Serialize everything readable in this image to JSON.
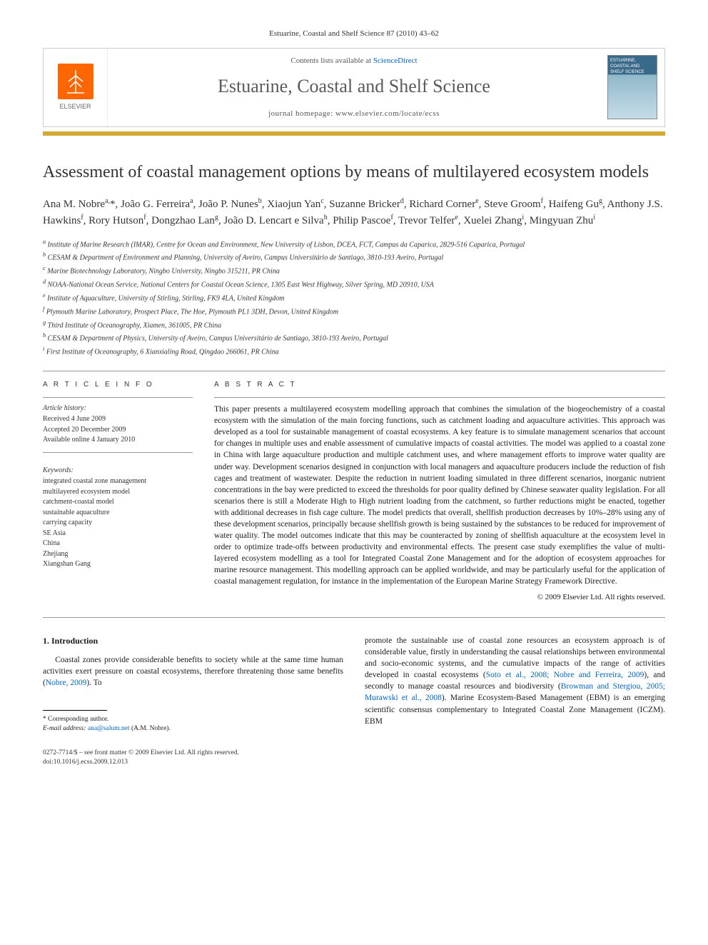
{
  "running_head": "Estuarine, Coastal and Shelf Science 87 (2010) 43–62",
  "header": {
    "contents_prefix": "Contents lists available at ",
    "contents_link": "ScienceDirect",
    "journal_name": "Estuarine, Coastal and Shelf Science",
    "homepage_prefix": "journal homepage: ",
    "homepage_url": "www.elsevier.com/locate/ecss",
    "elsevier_brand": "ELSEVIER",
    "cover_text": "ESTUARINE, COASTAL AND SHELF SCIENCE"
  },
  "title": "Assessment of coastal management options by means of multilayered ecosystem models",
  "authors_html": "Ana M. Nobre<sup>a,</sup>*, João G. Ferreira<sup>a</sup>, João P. Nunes<sup>b</sup>, Xiaojun Yan<sup>c</sup>, Suzanne Bricker<sup>d</sup>, Richard Corner<sup>e</sup>, Steve Groom<sup>f</sup>, Haifeng Gu<sup>g</sup>, Anthony J.S. Hawkins<sup>f</sup>, Rory Hutson<sup>f</sup>, Dongzhao Lan<sup>g</sup>, João D. Lencart e Silva<sup>h</sup>, Philip Pascoe<sup>f</sup>, Trevor Telfer<sup>e</sup>, Xuelei Zhang<sup>i</sup>, Mingyuan Zhu<sup>i</sup>",
  "affiliations": [
    "a Institute of Marine Research (IMAR), Centre for Ocean and Environment, New University of Lisbon, DCEA, FCT, Campus da Caparica, 2829-516 Caparica, Portugal",
    "b CESAM & Department of Environment and Planning, University of Aveiro, Campus Universitário de Santiago, 3810-193 Aveiro, Portugal",
    "c Marine Biotechnology Laboratory, Ningbo University, Ningbo 315211, PR China",
    "d NOAA-National Ocean Service, National Centers for Coastal Ocean Science, 1305 East West Highway, Silver Spring, MD 20910, USA",
    "e Institute of Aquaculture, University of Stirling, Stirling, FK9 4LA, United Kingdom",
    "f Plymouth Marine Laboratory, Prospect Place, The Hoe, Plymouth PL1 3DH, Devon, United Kingdom",
    "g Third Institute of Oceanography, Xiamen, 361005, PR China",
    "h CESAM & Department of Physics, University of Aveiro, Campus Universitário de Santiago, 3810-193 Aveiro, Portugal",
    "i First Institute of Oceanography, 6 Xianxialing Road, Qingdao 266061, PR China"
  ],
  "article_info": {
    "label": "A R T I C L E   I N F O",
    "history_head": "Article history:",
    "history": [
      "Received 4 June 2009",
      "Accepted 20 December 2009",
      "Available online 4 January 2010"
    ],
    "keywords_head": "Keywords:",
    "keywords": [
      "integrated coastal zone management",
      "multilayered ecosystem model",
      "catchment-coastal model",
      "sustainable aquaculture",
      "carrying capacity",
      "SE Asia",
      "China",
      "Zhejiang",
      "Xiangshan Gang"
    ]
  },
  "abstract": {
    "label": "A B S T R A C T",
    "text": "This paper presents a multilayered ecosystem modelling approach that combines the simulation of the biogeochemistry of a coastal ecosystem with the simulation of the main forcing functions, such as catchment loading and aquaculture activities. This approach was developed as a tool for sustainable management of coastal ecosystems. A key feature is to simulate management scenarios that account for changes in multiple uses and enable assessment of cumulative impacts of coastal activities. The model was applied to a coastal zone in China with large aquaculture production and multiple catchment uses, and where management efforts to improve water quality are under way. Development scenarios designed in conjunction with local managers and aquaculture producers include the reduction of fish cages and treatment of wastewater. Despite the reduction in nutrient loading simulated in three different scenarios, inorganic nutrient concentrations in the bay were predicted to exceed the thresholds for poor quality defined by Chinese seawater quality legislation. For all scenarios there is still a Moderate High to High nutrient loading from the catchment, so further reductions might be enacted, together with additional decreases in fish cage culture. The model predicts that overall, shellfish production decreases by 10%–28% using any of these development scenarios, principally because shellfish growth is being sustained by the substances to be reduced for improvement of water quality. The model outcomes indicate that this may be counteracted by zoning of shellfish aquaculture at the ecosystem level in order to optimize trade-offs between productivity and environmental effects. The present case study exemplifies the value of multi-layered ecosystem modelling as a tool for Integrated Coastal Zone Management and for the adoption of ecosystem approaches for marine resource management. This modelling approach can be applied worldwide, and may be particularly useful for the application of coastal management regulation, for instance in the implementation of the European Marine Strategy Framework Directive.",
    "copyright": "© 2009 Elsevier Ltd. All rights reserved."
  },
  "section1": {
    "head": "1.  Introduction",
    "col1_text": "Coastal zones provide considerable benefits to society while at the same time human activities exert pressure on coastal ecosystems, therefore threatening those same benefits (",
    "col1_link": "Nobre, 2009",
    "col1_tail": "). To",
    "col2_text1": "promote the sustainable use of coastal zone resources an ecosystem approach is of considerable value, firstly in understanding the causal relationships between environmental and socio-economic systems, and the cumulative impacts of the range of activities developed in coastal ecosystems (",
    "col2_link1": "Soto et al., 2008; Nobre and Ferreira, 2009",
    "col2_text2": "), and secondly to manage coastal resources and biodiversity (",
    "col2_link2": "Browman and Stergiou, 2005; Murawski et al., 2008",
    "col2_text3": "). Marine Ecosystem-Based Management (EBM) is an emerging scientific consensus complementary to Integrated Coastal Zone Management (ICZM). EBM"
  },
  "footnotes": {
    "corr": "* Corresponding author.",
    "email_label": "E-mail address: ",
    "email": "ana@salum.net",
    "email_tail": " (A.M. Nobre)."
  },
  "page_foot": {
    "line1": "0272-7714/$ – see front matter © 2009 Elsevier Ltd. All rights reserved.",
    "line2": "doi:10.1016/j.ecss.2009.12.013"
  },
  "colors": {
    "elsevier_orange": "#ff6600",
    "gold_bar": "#d4a936",
    "link": "#0066cc",
    "cover_top": "#3a6a8a"
  }
}
